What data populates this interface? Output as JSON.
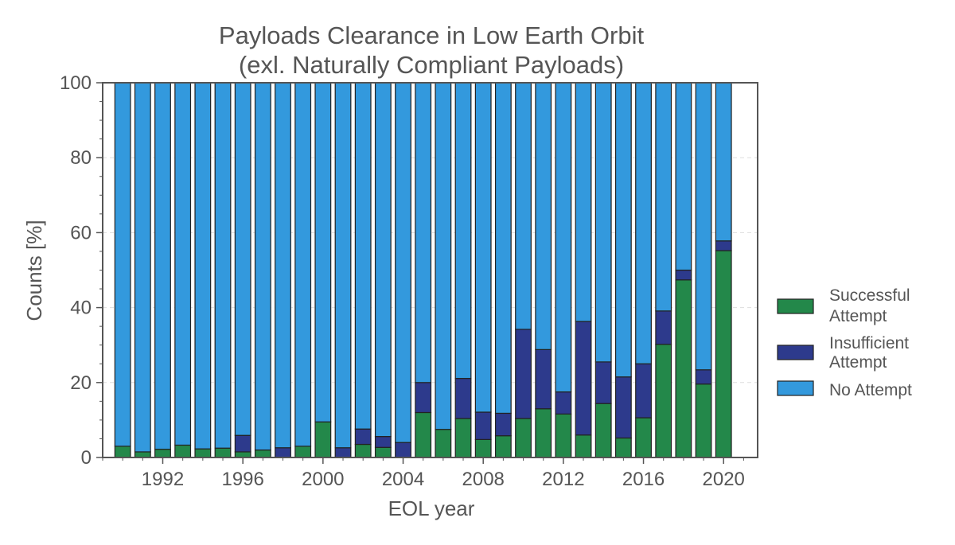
{
  "chart_data": {
    "type": "bar",
    "stacked": true,
    "normalized": true,
    "title": "Payloads Clearance in Low Earth Orbit",
    "subtitle": "(exl. Naturally Compliant Payloads)",
    "xlabel": "EOL year",
    "ylabel": "Counts [%]",
    "xlim": [
      1989,
      2021.7
    ],
    "ylim": [
      0,
      100
    ],
    "x_ticks": [
      "1992",
      "1996",
      "2000",
      "2004",
      "2008",
      "2012",
      "2016",
      "2020"
    ],
    "y_ticks": [
      "0",
      "20",
      "40",
      "60",
      "80",
      "100"
    ],
    "grid": "horizontal dashed",
    "legend_position": "right",
    "categories": [
      1990,
      1991,
      1992,
      1993,
      1994,
      1995,
      1996,
      1997,
      1998,
      1999,
      2000,
      2001,
      2002,
      2003,
      2004,
      2005,
      2006,
      2007,
      2008,
      2009,
      2010,
      2011,
      2012,
      2013,
      2014,
      2015,
      2016,
      2017,
      2018,
      2019,
      2020
    ],
    "series": [
      {
        "name": "Successful Attempt",
        "color": "#23884a",
        "values": [
          3,
          1.5,
          2.2,
          3.3,
          2.3,
          2.5,
          1.5,
          2,
          0,
          3,
          9.5,
          0,
          3.5,
          2.7,
          0,
          12,
          7.5,
          10.4,
          4.8,
          5.8,
          10.4,
          13,
          11.6,
          6,
          14.4,
          5.2,
          10.6,
          30.2,
          47.4,
          19.6,
          55.2
        ]
      },
      {
        "name": "Insufficient Attempt",
        "color": "#2d3a8c",
        "values": [
          0,
          0,
          0,
          0,
          0,
          0,
          4.4,
          0,
          2.6,
          0,
          0,
          2.6,
          4.1,
          2.9,
          4,
          8,
          0,
          10.7,
          7.3,
          6,
          23.8,
          15.8,
          5.9,
          30.3,
          11.1,
          16.3,
          14.4,
          8.9,
          2.6,
          3.8,
          2.6
        ]
      },
      {
        "name": "No Attempt",
        "color": "#3399dd",
        "values": [
          97,
          98.5,
          97.8,
          96.7,
          97.7,
          97.5,
          94.1,
          98,
          97.4,
          97,
          90.5,
          97.4,
          92.4,
          94.4,
          96,
          80,
          92.5,
          78.9,
          87.9,
          88.2,
          65.8,
          71.2,
          82.5,
          63.7,
          74.5,
          78.5,
          75,
          60.9,
          50,
          76.6,
          42.2
        ]
      }
    ],
    "legend": [
      {
        "line1": "Successful",
        "line2": "Attempt",
        "color": "#23884a"
      },
      {
        "line1": "Insufficient",
        "line2": "Attempt",
        "color": "#2d3a8c"
      },
      {
        "line1": "No Attempt",
        "line2": "",
        "color": "#3399dd"
      }
    ]
  }
}
